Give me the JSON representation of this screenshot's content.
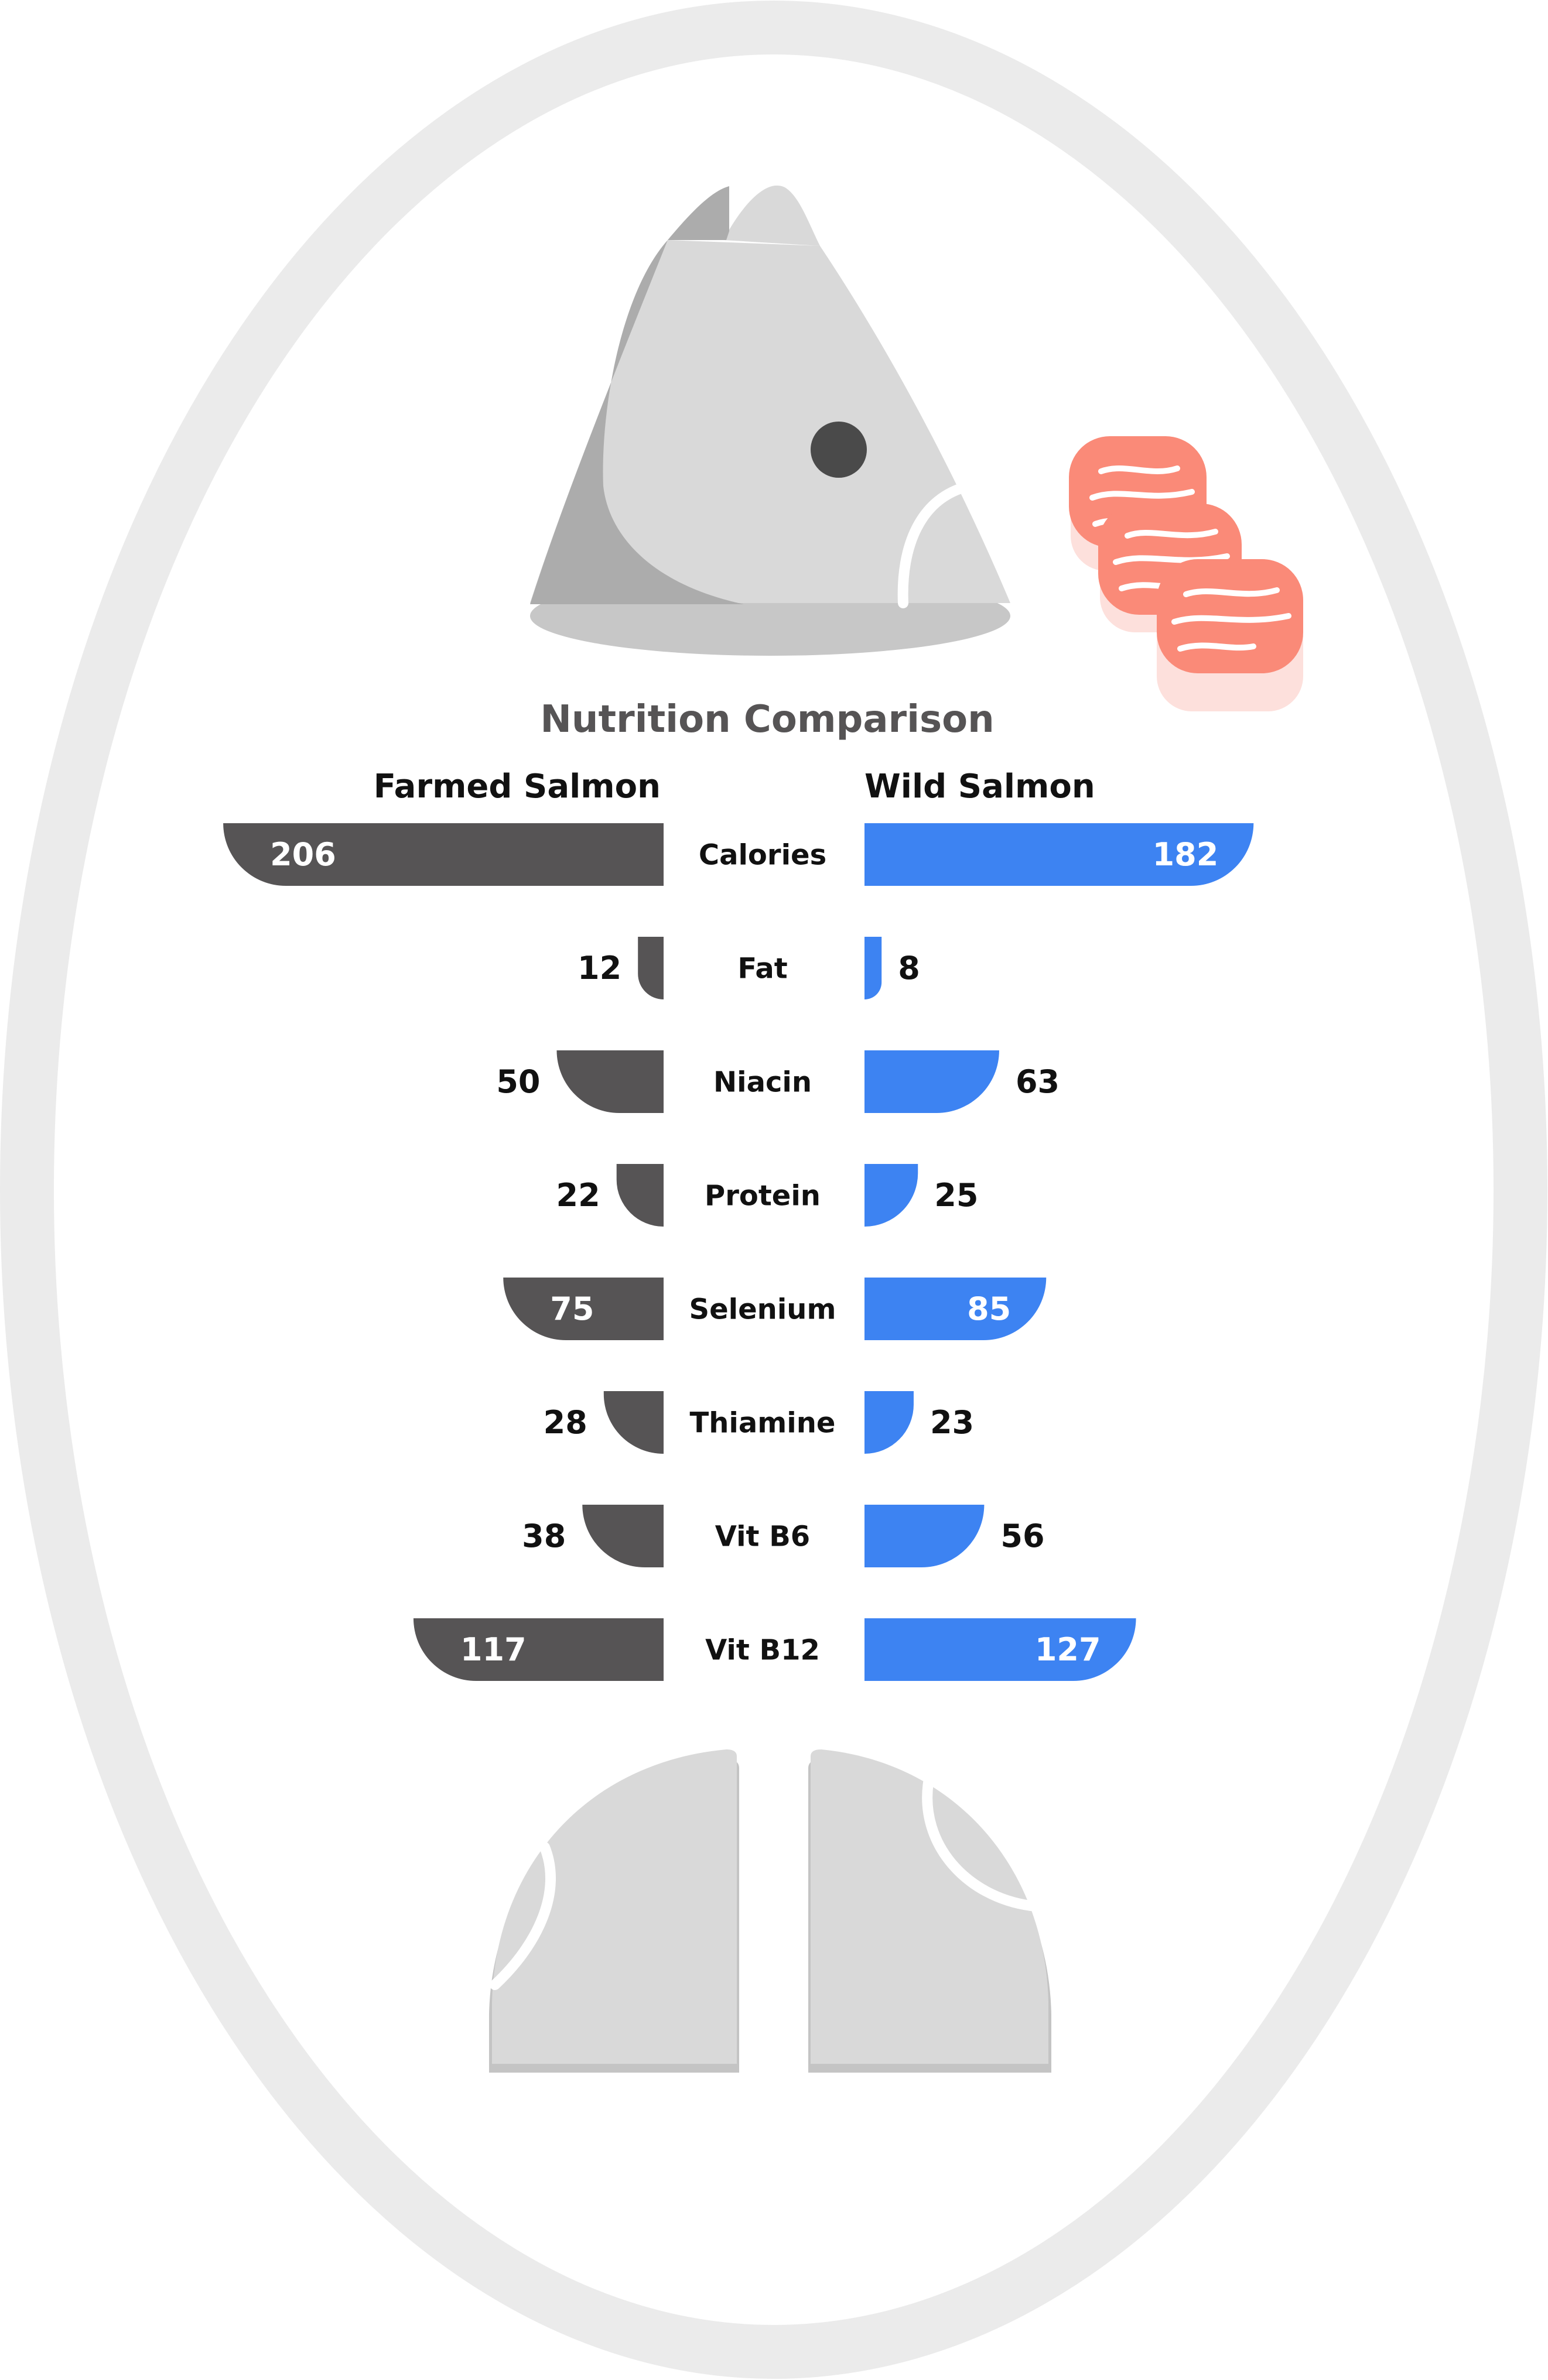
{
  "colors": {
    "frame": "#ebebeb",
    "background": "#ffffff",
    "farmed": "#565455",
    "wild": "#3d83f2",
    "fish_light": "#d9d9d9",
    "fish_dark": "#acacac",
    "fish_eye": "#4a4a4a",
    "salmon_slice": "#fa8a78",
    "salmon_shadow": "#fde0dc",
    "text_dark": "#111111",
    "title": "#565455"
  },
  "icons": [
    "fish-head-icon",
    "salmon-slices-icon",
    "fish-tail-icon"
  ],
  "chart_data": {
    "type": "bar",
    "orientation": "horizontal-diverging",
    "title": "Nutrition Comparison",
    "categories": [
      "Calories",
      "Fat",
      "Niacin",
      "Protein",
      "Selenium",
      "Thiamine",
      "Vit B6",
      "Vit B12"
    ],
    "series": [
      {
        "name": "Farmed Salmon",
        "side": "left",
        "values": [
          206,
          12,
          50,
          22,
          75,
          28,
          38,
          117
        ]
      },
      {
        "name": "Wild Salmon",
        "side": "right",
        "values": [
          182,
          8,
          63,
          25,
          85,
          23,
          56,
          127
        ]
      }
    ],
    "grid": false,
    "legend": "top"
  }
}
